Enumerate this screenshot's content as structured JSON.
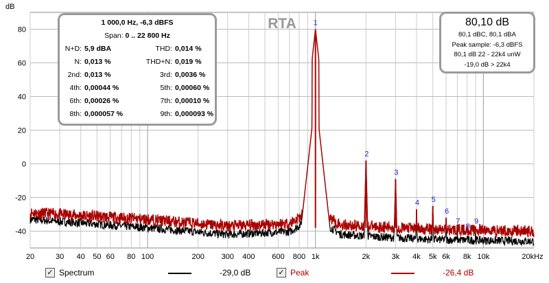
{
  "title": "RTA",
  "y_unit": "dB",
  "stats": {
    "header": "1 000,0 Hz, -6,3 dBFS",
    "span_label": "Span:",
    "span_value": "0 .. 22 800 Hz",
    "rows": [
      {
        "l1": "N+D:",
        "v1": "5,9 dBA",
        "l2": "THD:",
        "v2": "0,014 %"
      },
      {
        "l1": "N:",
        "v1": "0,013 %",
        "l2": "THD+N:",
        "v2": "0,019 %"
      },
      {
        "l1": "2nd:",
        "v1": "0,013 %",
        "l2": "3rd:",
        "v2": "0,0036 %"
      },
      {
        "l1": "4th:",
        "v1": "0,00044 %",
        "l2": "5th:",
        "v2": "0,00060 %"
      },
      {
        "l1": "6th:",
        "v1": "0,00026 %",
        "l2": "7th:",
        "v2": "0,00010 %"
      },
      {
        "l1": "8th:",
        "v1": "0,000057 %",
        "l2": "9th:",
        "v2": "0,000093 %"
      }
    ]
  },
  "level": {
    "main": "80,10 dB",
    "lines": [
      "80,1 dBC, 80,1 dBA",
      "Peak sample: -6,3 dBFS",
      "80,1 dB 22 - 22k4 unW",
      "-19,0 dB > 22k4"
    ]
  },
  "legend": {
    "spectrum_label": "Spectrum",
    "spectrum_value": "-29,0 dB",
    "spectrum_color": "#000000",
    "peak_label": "Peak",
    "peak_value": "-26,4 dB",
    "peak_color": "#aa0000",
    "check": "✓"
  },
  "chart_data": {
    "type": "line",
    "title": "RTA",
    "ylabel": "dB",
    "xlabel": "Hz",
    "xscale": "log",
    "xlim": [
      20,
      20000
    ],
    "ylim": [
      -50,
      90
    ],
    "yticks": [
      80,
      60,
      40,
      20,
      0,
      -20,
      -40
    ],
    "xticks": [
      {
        "v": 20,
        "t": "20"
      },
      {
        "v": 30,
        "t": "30"
      },
      {
        "v": 40,
        "t": "40"
      },
      {
        "v": 50,
        "t": "50"
      },
      {
        "v": 60,
        "t": "60"
      },
      {
        "v": 80,
        "t": "80"
      },
      {
        "v": 100,
        "t": "100"
      },
      {
        "v": 200,
        "t": "200"
      },
      {
        "v": 300,
        "t": "300"
      },
      {
        "v": 400,
        "t": "400"
      },
      {
        "v": 600,
        "t": "600"
      },
      {
        "v": 800,
        "t": "800"
      },
      {
        "v": 1000,
        "t": "1k"
      },
      {
        "v": 2000,
        "t": "2k"
      },
      {
        "v": 3000,
        "t": "3k"
      },
      {
        "v": 4000,
        "t": "4k"
      },
      {
        "v": 5000,
        "t": "5k"
      },
      {
        "v": 6000,
        "t": "6k"
      },
      {
        "v": 8000,
        "t": "8k"
      },
      {
        "v": 10000,
        "t": "10k"
      },
      {
        "v": 20000,
        "t": "20kHz"
      }
    ],
    "harmonics": [
      {
        "n": "1",
        "f": 1000,
        "db": 80
      },
      {
        "n": "2",
        "f": 2000,
        "db": 2
      },
      {
        "n": "3",
        "f": 3000,
        "db": -9
      },
      {
        "n": "4",
        "f": 4000,
        "db": -27
      },
      {
        "n": "5",
        "f": 5000,
        "db": -25
      },
      {
        "n": "6",
        "f": 6000,
        "db": -32
      },
      {
        "n": "7",
        "f": 7000,
        "db": -38
      },
      {
        "n": "8",
        "f": 8000,
        "db": -41
      },
      {
        "n": "9",
        "f": 9000,
        "db": -38
      }
    ],
    "series": [
      {
        "name": "Spectrum",
        "color": "#000000",
        "floor": [
          [
            20,
            -33
          ],
          [
            100,
            -38
          ],
          [
            300,
            -42
          ],
          [
            800,
            -40
          ],
          [
            2000,
            -43
          ],
          [
            5000,
            -45
          ],
          [
            20000,
            -46
          ]
        ]
      },
      {
        "name": "Peak",
        "color": "#aa0000",
        "floor": [
          [
            20,
            -29
          ],
          [
            100,
            -33
          ],
          [
            300,
            -37
          ],
          [
            800,
            -35
          ],
          [
            2000,
            -37
          ],
          [
            5000,
            -39
          ],
          [
            20000,
            -40
          ]
        ]
      }
    ]
  }
}
